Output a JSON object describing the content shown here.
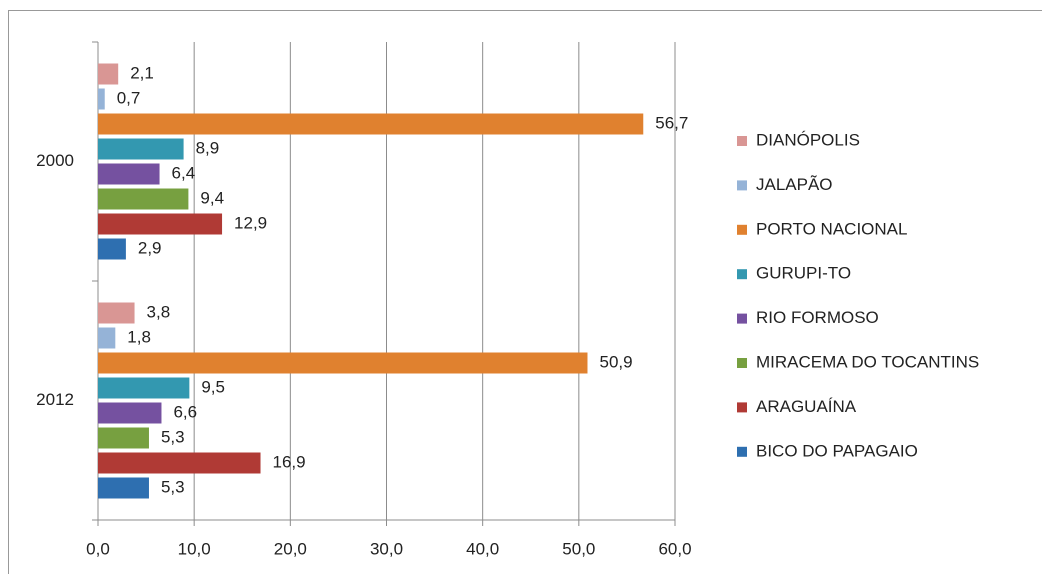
{
  "chart_data": {
    "type": "hbar",
    "categories": [
      "2000",
      "2012"
    ],
    "series": [
      {
        "name": "DIANÓPOLIS",
        "color": "#d99694",
        "values": [
          2.1,
          3.8
        ],
        "value_labels": [
          "2,1",
          "3,8"
        ]
      },
      {
        "name": "JALAPÃO",
        "color": "#95b3d7",
        "values": [
          0.7,
          1.8
        ],
        "value_labels": [
          "0,7",
          "1,8"
        ]
      },
      {
        "name": "PORTO NACIONAL",
        "color": "#e0812f",
        "values": [
          56.7,
          50.9
        ],
        "value_labels": [
          "56,7",
          "50,9"
        ]
      },
      {
        "name": "GURUPI-TO",
        "color": "#3398b0",
        "values": [
          8.9,
          9.5
        ],
        "value_labels": [
          "8,9",
          "9,5"
        ]
      },
      {
        "name": "RIO FORMOSO",
        "color": "#7551a0",
        "values": [
          6.4,
          6.6
        ],
        "value_labels": [
          "6,4",
          "6,6"
        ]
      },
      {
        "name": "MIRACEMA DO TOCANTINS",
        "color": "#77a040",
        "values": [
          9.4,
          5.3
        ],
        "value_labels": [
          "9,4",
          "5,3"
        ]
      },
      {
        "name": "ARAGUAÍNA",
        "color": "#b03a35",
        "values": [
          12.9,
          16.9
        ],
        "value_labels": [
          "12,9",
          "16,9"
        ]
      },
      {
        "name": "BICO DO PAPAGAIO",
        "color": "#2e6fb0",
        "values": [
          2.9,
          5.3
        ],
        "value_labels": [
          "2,9",
          "5,3"
        ]
      }
    ],
    "xlim": [
      0,
      60
    ],
    "xticks": [
      {
        "value": 0,
        "label": "0,0"
      },
      {
        "value": 10,
        "label": "10,0"
      },
      {
        "value": 20,
        "label": "20,0"
      },
      {
        "value": 30,
        "label": "30,0"
      },
      {
        "value": 40,
        "label": "40,0"
      },
      {
        "value": 50,
        "label": "50,0"
      },
      {
        "value": 60,
        "label": "60,0"
      }
    ],
    "grid": true,
    "legend": "right"
  }
}
